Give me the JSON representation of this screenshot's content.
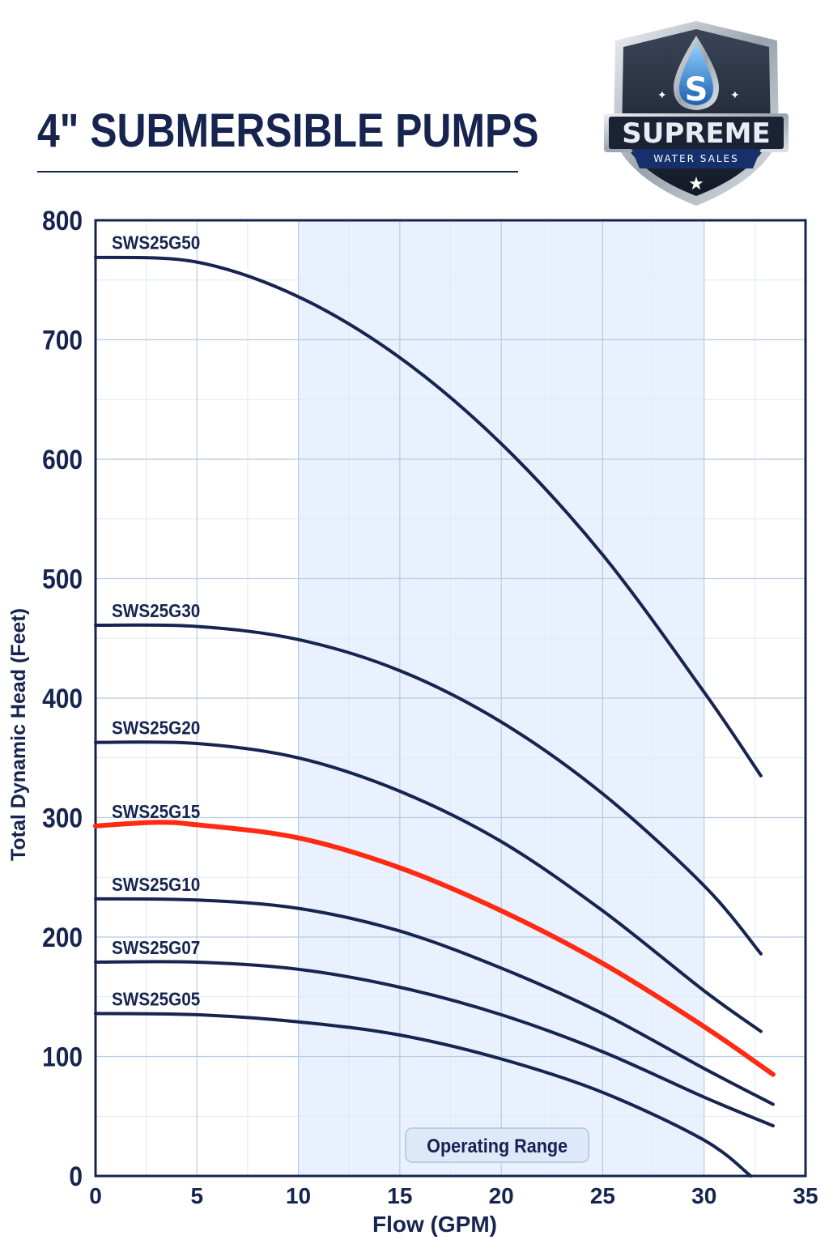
{
  "page": {
    "title": "4\" SUBMERSIBLE PUMPS"
  },
  "logo": {
    "name": "SUPREME",
    "tagline": "WATER SALES",
    "mark_letter": "S",
    "colors": {
      "shield": "#1c2433",
      "accent": "#2f7fd6",
      "silver": "#c9ced6"
    }
  },
  "colors": {
    "navy": "#16244f",
    "highlight": "#ff2a12",
    "grid": "#c9d8ea",
    "range_fill": "#e8f1fd"
  },
  "chart_data": {
    "type": "line",
    "title": "",
    "xlabel": "Flow (GPM)",
    "ylabel": "Total Dynamic Head (Feet)",
    "xlim": [
      0,
      35
    ],
    "ylim": [
      0,
      800
    ],
    "x_ticks": [
      "0",
      "5",
      "10",
      "15",
      "20",
      "25",
      "30",
      "35"
    ],
    "y_ticks": [
      "0",
      "100",
      "200",
      "300",
      "400",
      "500",
      "600",
      "700",
      "800"
    ],
    "grid": true,
    "operating_range": {
      "label": "Operating Range",
      "x": [
        10,
        30
      ]
    },
    "series": [
      {
        "name": "SWS25G50",
        "highlight": false,
        "points": [
          [
            0,
            769
          ],
          [
            5,
            765
          ],
          [
            10,
            736
          ],
          [
            15,
            685
          ],
          [
            20,
            613
          ],
          [
            25,
            520
          ],
          [
            30,
            405
          ],
          [
            32.8,
            335
          ]
        ]
      },
      {
        "name": "SWS25G30",
        "highlight": false,
        "points": [
          [
            0,
            461
          ],
          [
            5,
            460
          ],
          [
            10,
            449
          ],
          [
            15,
            423
          ],
          [
            20,
            380
          ],
          [
            25,
            320
          ],
          [
            30,
            243
          ],
          [
            32.8,
            186
          ]
        ]
      },
      {
        "name": "SWS25G20",
        "highlight": false,
        "points": [
          [
            0,
            363
          ],
          [
            5,
            362
          ],
          [
            10,
            350
          ],
          [
            15,
            322
          ],
          [
            20,
            280
          ],
          [
            25,
            222
          ],
          [
            30,
            155
          ],
          [
            32.8,
            121
          ]
        ]
      },
      {
        "name": "SWS25G15",
        "highlight": true,
        "points": [
          [
            0,
            293
          ],
          [
            3,
            296
          ],
          [
            5,
            294
          ],
          [
            10,
            283
          ],
          [
            15,
            258
          ],
          [
            20,
            222
          ],
          [
            25,
            178
          ],
          [
            30,
            125
          ],
          [
            33.4,
            85
          ]
        ]
      },
      {
        "name": "SWS25G10",
        "highlight": false,
        "points": [
          [
            0,
            232
          ],
          [
            5,
            231
          ],
          [
            10,
            224
          ],
          [
            15,
            205
          ],
          [
            20,
            174
          ],
          [
            25,
            136
          ],
          [
            30,
            90
          ],
          [
            33.4,
            60
          ]
        ]
      },
      {
        "name": "SWS25G07",
        "highlight": false,
        "points": [
          [
            0,
            179
          ],
          [
            5,
            179
          ],
          [
            10,
            173
          ],
          [
            15,
            158
          ],
          [
            20,
            135
          ],
          [
            25,
            104
          ],
          [
            30,
            66
          ],
          [
            33.4,
            42
          ]
        ]
      },
      {
        "name": "SWS25G05",
        "highlight": false,
        "points": [
          [
            0,
            136
          ],
          [
            5,
            135
          ],
          [
            10,
            129
          ],
          [
            15,
            118
          ],
          [
            20,
            98
          ],
          [
            25,
            70
          ],
          [
            30,
            30
          ],
          [
            32.3,
            0
          ]
        ]
      }
    ]
  }
}
